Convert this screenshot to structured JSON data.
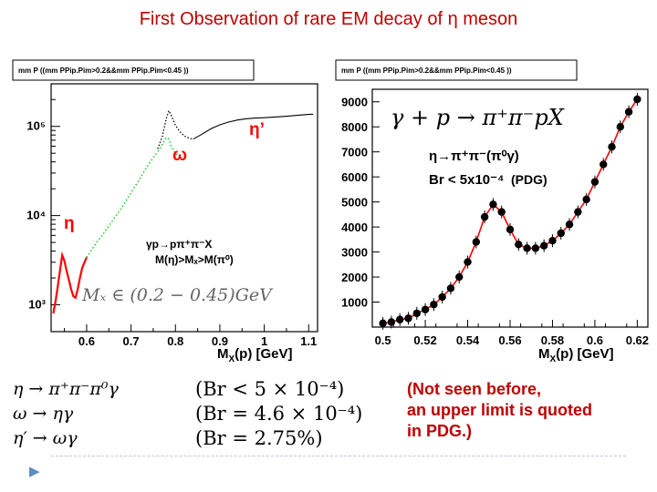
{
  "title": "First Observation of rare EM  decay of η meson",
  "colors": {
    "title": "#c00000",
    "curve": "#ff0000",
    "marker": "#000000"
  },
  "left_panel": {
    "header": "mm P ((mm PPip.Pim>0.2&&mm PPip.Pim<0.45 ))",
    "label_eta": "η",
    "label_omega": "ω",
    "label_etaprime": "η’",
    "reaction": "γp→pπ⁺π⁻X",
    "condition": "M(η)>Mₓ>M(π⁰)",
    "range_label": "Mₓ ∈ (0.2 − 0.45)GeV"
  },
  "right_panel": {
    "header": "mm P ((mm PPip.Pim>0.2&&mm PPip.Pim<0.45 ))",
    "reaction": "γ + p → π⁺π⁻pX",
    "decay": "η→π⁺π⁻(π⁰γ)",
    "branching": "Br < 5x10⁻⁴",
    "pdg": "(PDG)"
  },
  "chart_data": [
    {
      "type": "line",
      "title": "mm P ((mm PPip.Pim>0.2&&mm PPip.Pim<0.45 ))",
      "xlabel": "MX(p) [GeV]",
      "ylabel": "",
      "yscale": "log",
      "xlim": [
        0.52,
        1.12
      ],
      "ylim": [
        500,
        300000
      ],
      "x_ticks": [
        "0.6",
        "0.7",
        "0.8",
        "0.9",
        "1",
        "1.1"
      ],
      "y_ticks": [
        "10³",
        "10⁴",
        "10⁵"
      ],
      "series": [
        {
          "name": "red",
          "x": [
            0.525,
            0.53,
            0.535,
            0.54,
            0.545,
            0.55,
            0.555,
            0.56,
            0.565,
            0.57,
            0.575,
            0.58,
            0.585,
            0.59,
            0.6
          ],
          "values": [
            800,
            1100,
            1600,
            2400,
            3600,
            3100,
            2400,
            1900,
            1500,
            1250,
            1200,
            1500,
            2000,
            2600,
            3400
          ]
        },
        {
          "name": "green",
          "x": [
            0.6,
            0.62,
            0.64,
            0.66,
            0.68,
            0.7,
            0.72,
            0.74,
            0.76,
            0.77,
            0.775,
            0.78,
            0.785,
            0.79,
            0.8,
            0.81
          ],
          "values": [
            3400,
            4800,
            6500,
            9000,
            12500,
            18000,
            26000,
            38000,
            52000,
            62000,
            70000,
            75000,
            72000,
            60000,
            50000,
            45000
          ]
        },
        {
          "name": "black",
          "x": [
            0.76,
            0.77,
            0.775,
            0.78,
            0.785,
            0.79,
            0.8,
            0.81,
            0.82,
            0.83,
            0.84
          ],
          "values": [
            56000,
            76000,
            98000,
            125000,
            150000,
            135000,
            103000,
            87000,
            78000,
            74000,
            72000
          ]
        },
        {
          "name": "grey",
          "x": [
            0.84,
            0.86,
            0.88,
            0.9,
            0.92,
            0.94,
            0.96,
            0.98,
            1.0,
            1.02,
            1.04,
            1.06,
            1.08,
            1.1,
            1.11
          ],
          "values": [
            72000,
            82000,
            94000,
            104000,
            112000,
            118000,
            122000,
            124000,
            125000,
            127000,
            129000,
            131000,
            134000,
            136000,
            137000
          ]
        }
      ]
    },
    {
      "type": "scatter",
      "title": "mm P ((mm PPip.Pim>0.2&&mm PPip.Pim<0.45 ))",
      "xlabel": "MX(p) [GeV]",
      "ylabel": "",
      "xlim": [
        0.495,
        0.625
      ],
      "ylim": [
        0,
        9500
      ],
      "x_ticks": [
        "0.5",
        "0.52",
        "0.54",
        "0.56",
        "0.58",
        "0.6",
        "0.62"
      ],
      "y_ticks": [
        "1000",
        "2000",
        "3000",
        "4000",
        "5000",
        "6000",
        "7000",
        "8000",
        "9000"
      ],
      "x": [
        0.5,
        0.504,
        0.508,
        0.512,
        0.516,
        0.52,
        0.524,
        0.528,
        0.532,
        0.536,
        0.54,
        0.544,
        0.548,
        0.552,
        0.556,
        0.56,
        0.564,
        0.568,
        0.572,
        0.576,
        0.58,
        0.584,
        0.588,
        0.592,
        0.596,
        0.6,
        0.604,
        0.608,
        0.612,
        0.616,
        0.62
      ],
      "values": [
        150,
        200,
        300,
        350,
        550,
        700,
        900,
        1200,
        1550,
        2000,
        2600,
        3400,
        4400,
        4900,
        4600,
        3900,
        3300,
        3150,
        3150,
        3250,
        3450,
        3750,
        4100,
        4600,
        5100,
        5800,
        6500,
        7200,
        8000,
        8600,
        9100
      ]
    }
  ],
  "equations": [
    {
      "lhs": "η → π⁺π⁻π⁰γ",
      "rhs": "(Br < 5 × 10⁻⁴)"
    },
    {
      "lhs": "ω → ηγ",
      "rhs": "(Br = 4.6 × 10⁻⁴)"
    },
    {
      "lhs": "η′ → ωγ",
      "rhs": "(Br = 2.75%)"
    }
  ],
  "note": [
    "(Not seen before,",
    "an upper limit is quoted",
    "in PDG.)"
  ],
  "bullet_icon": "triangle-right-icon"
}
